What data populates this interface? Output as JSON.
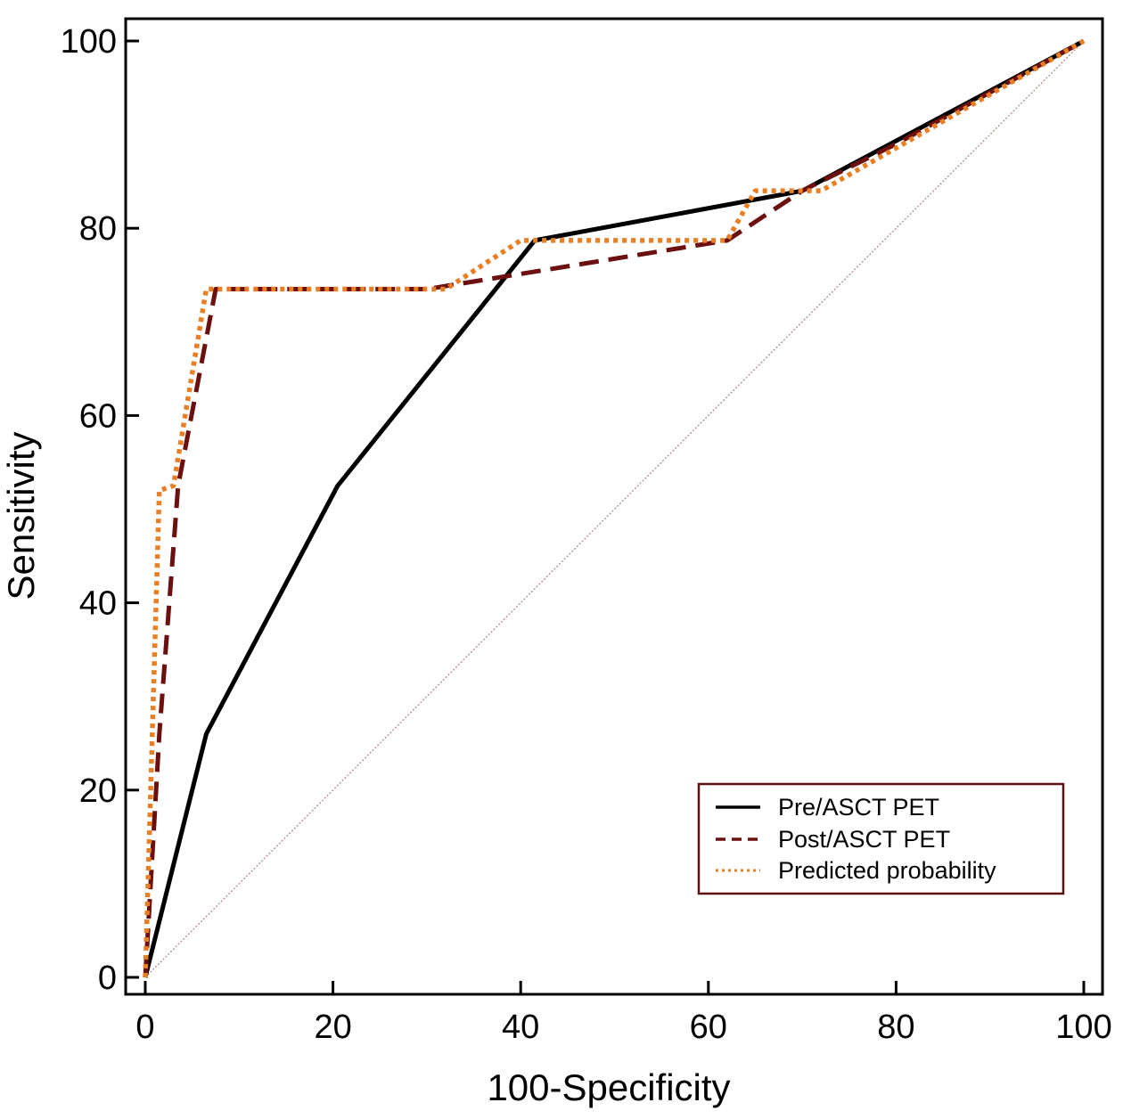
{
  "chart_data": {
    "type": "line",
    "title": "",
    "xlabel": "100-Specificity",
    "ylabel": "Sensitivity",
    "xlim": [
      0,
      100
    ],
    "ylim": [
      0,
      100
    ],
    "xticks": [
      0,
      20,
      40,
      60,
      80,
      100
    ],
    "yticks": [
      0,
      20,
      40,
      60,
      80,
      100
    ],
    "grid": false,
    "legend_position": "bottom-right",
    "reference_line": {
      "x": [
        0,
        100
      ],
      "y": [
        0,
        100
      ],
      "color": "#b08a80"
    },
    "series": [
      {
        "name": "Pre/ASCT PET",
        "style": "solid",
        "color": "#000000",
        "x": [
          0,
          6.5,
          20.5,
          41.5,
          70,
          100
        ],
        "y": [
          0,
          26,
          52.5,
          78.7,
          84,
          100
        ]
      },
      {
        "name": "Post/ASCT PET",
        "style": "dashed",
        "color": "#6b0f0f",
        "x": [
          0,
          1.5,
          3.5,
          7.5,
          30,
          62,
          70,
          80,
          100
        ],
        "y": [
          0,
          26,
          52.5,
          73.5,
          73.5,
          78.7,
          84,
          89,
          100
        ]
      },
      {
        "name": "Predicted probability",
        "style": "dotted",
        "color": "#e87f24",
        "x": [
          0,
          1.5,
          3,
          6.5,
          32,
          40,
          62,
          65,
          72,
          100
        ],
        "y": [
          0,
          52,
          52.5,
          73.5,
          73.5,
          78.7,
          78.7,
          84,
          84,
          100
        ]
      }
    ]
  }
}
